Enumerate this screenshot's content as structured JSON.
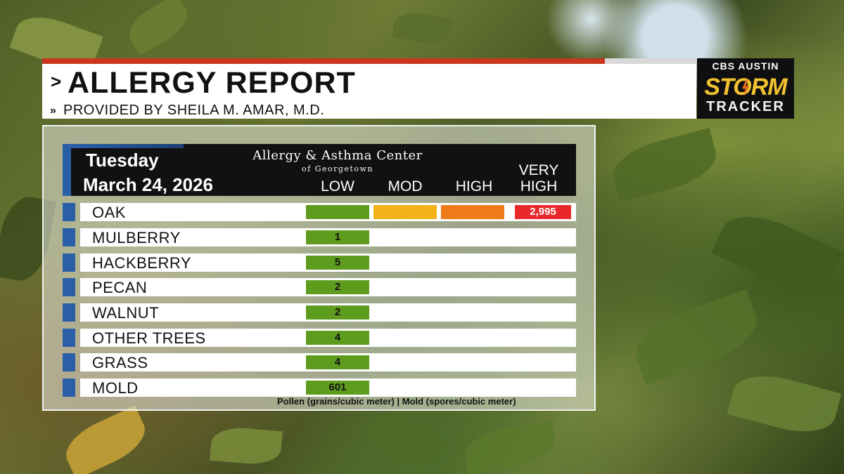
{
  "header": {
    "title": "ALLERGY REPORT",
    "title_chevron": ">",
    "subtitle": "PROVIDED BY SHEILA M. AMAR, M.D.",
    "subtitle_chevron": "»",
    "accent_color": "#c8371e"
  },
  "logo": {
    "network": "CBS AUSTIN",
    "storm": "STORM",
    "tracker": "TRACKER"
  },
  "report": {
    "day": "Tuesday",
    "date": "March 24, 2026",
    "center_name": "Allergy & Asthma Center",
    "center_sub": "of Georgetown",
    "levels": [
      "LOW",
      "MOD",
      "HIGH",
      "VERY HIGH"
    ],
    "levels_vh_line1": "VERY",
    "levels_vh_line2": "HIGH",
    "rows": [
      {
        "label": "OAK",
        "value": "2,995",
        "level": "very-high"
      },
      {
        "label": "MULBERRY",
        "value": "1",
        "level": "low"
      },
      {
        "label": "HACKBERRY",
        "value": "5",
        "level": "low"
      },
      {
        "label": "PECAN",
        "value": "2",
        "level": "low"
      },
      {
        "label": "WALNUT",
        "value": "2",
        "level": "low"
      },
      {
        "label": "OTHER TREES",
        "value": "4",
        "level": "low"
      },
      {
        "label": "GRASS",
        "value": "4",
        "level": "low"
      },
      {
        "label": "MOLD",
        "value": "601",
        "level": "low"
      }
    ],
    "footnote": "Pollen (grains/cubic meter) | Mold (spores/cubic meter)",
    "colors": {
      "low": "#5e9c1e",
      "mod": "#f2b21a",
      "high": "#ef7a1a",
      "very_high": "#e8282a",
      "row_marker": "#2a5fa8"
    }
  }
}
